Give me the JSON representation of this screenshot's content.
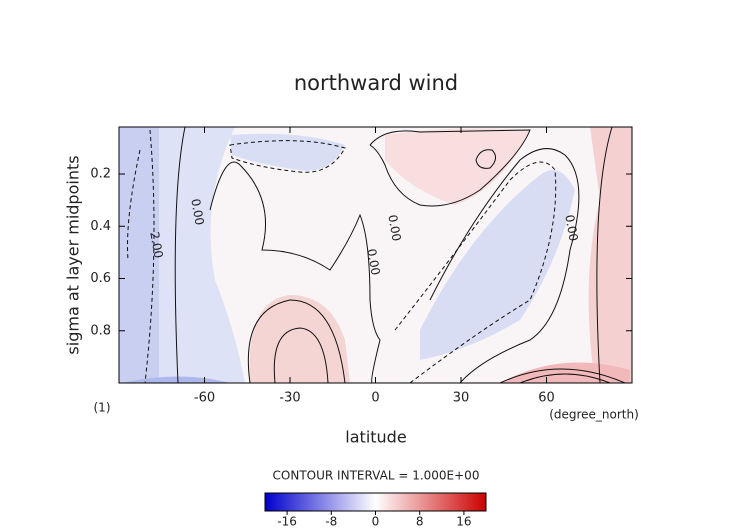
{
  "chart_data": {
    "type": "contour",
    "title": "northward wind",
    "xlabel": "latitude",
    "ylabel": "sigma at layer midpoints",
    "xunit": "(degree_north)",
    "yunit": "(1)",
    "xlim": [
      -90,
      90
    ],
    "xticks": [
      -60,
      -30,
      0,
      30,
      60
    ],
    "ylim": [
      1,
      0.02
    ],
    "yticks": [
      0.2,
      0.4,
      0.6,
      0.8
    ],
    "contour_labels": [
      "0.00",
      "2.00",
      "0.00",
      "0.00",
      "0.00"
    ],
    "contour_interval": "CONTOUR INTERVAL = 1.000E+00",
    "colorbar": {
      "lim": [
        -20,
        20
      ],
      "ticks": [
        -16,
        -8,
        0,
        8,
        16
      ],
      "colors": [
        "#0000cc",
        "#ffffff",
        "#cc0000"
      ]
    }
  }
}
